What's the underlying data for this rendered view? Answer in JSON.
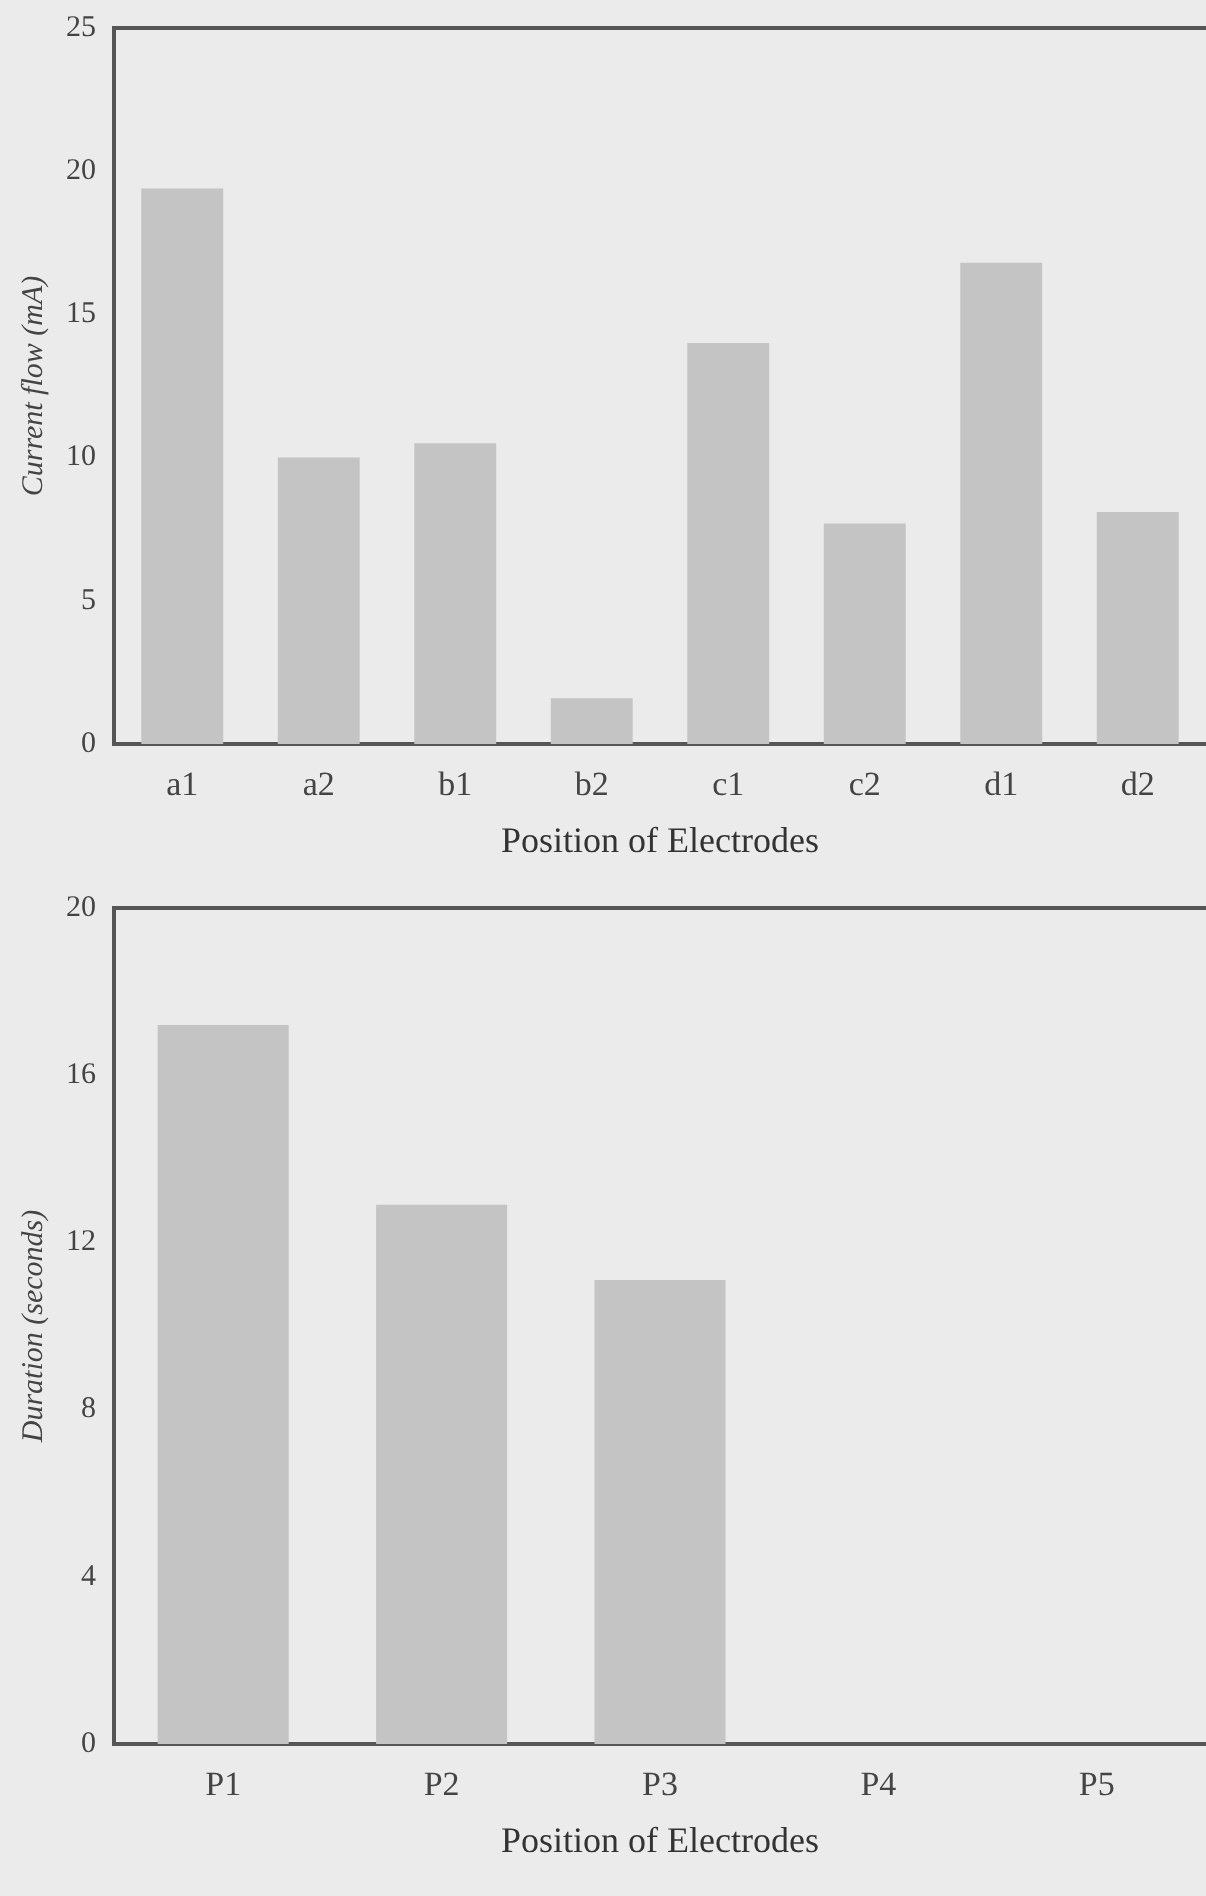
{
  "chart_data": [
    {
      "type": "bar",
      "categories": [
        "a1",
        "a2",
        "b1",
        "b2",
        "c1",
        "c2",
        "d1",
        "d2"
      ],
      "values": [
        19.4,
        10,
        10.5,
        1.6,
        14,
        7.7,
        16.8,
        8.1
      ],
      "color": "#c4c4c4",
      "ylim": [
        0,
        25
      ],
      "yticks": [
        0,
        5,
        10,
        15,
        20,
        25
      ],
      "ylabel": "Current flow (mA)",
      "xlabel": "Position of Electrodes",
      "grid": false,
      "legend": false
    },
    {
      "type": "bar",
      "categories": [
        "P1",
        "P2",
        "P3",
        "P4",
        "P5"
      ],
      "values": [
        17.2,
        12.9,
        11.1,
        null,
        null
      ],
      "color": "#c4c4c4",
      "ylim": [
        0,
        20
      ],
      "yticks": [
        0,
        4,
        8,
        12,
        16,
        20
      ],
      "ylabel": "Duration (seconds)",
      "xlabel": "Position of Electrodes",
      "grid": false,
      "legend": false
    }
  ]
}
